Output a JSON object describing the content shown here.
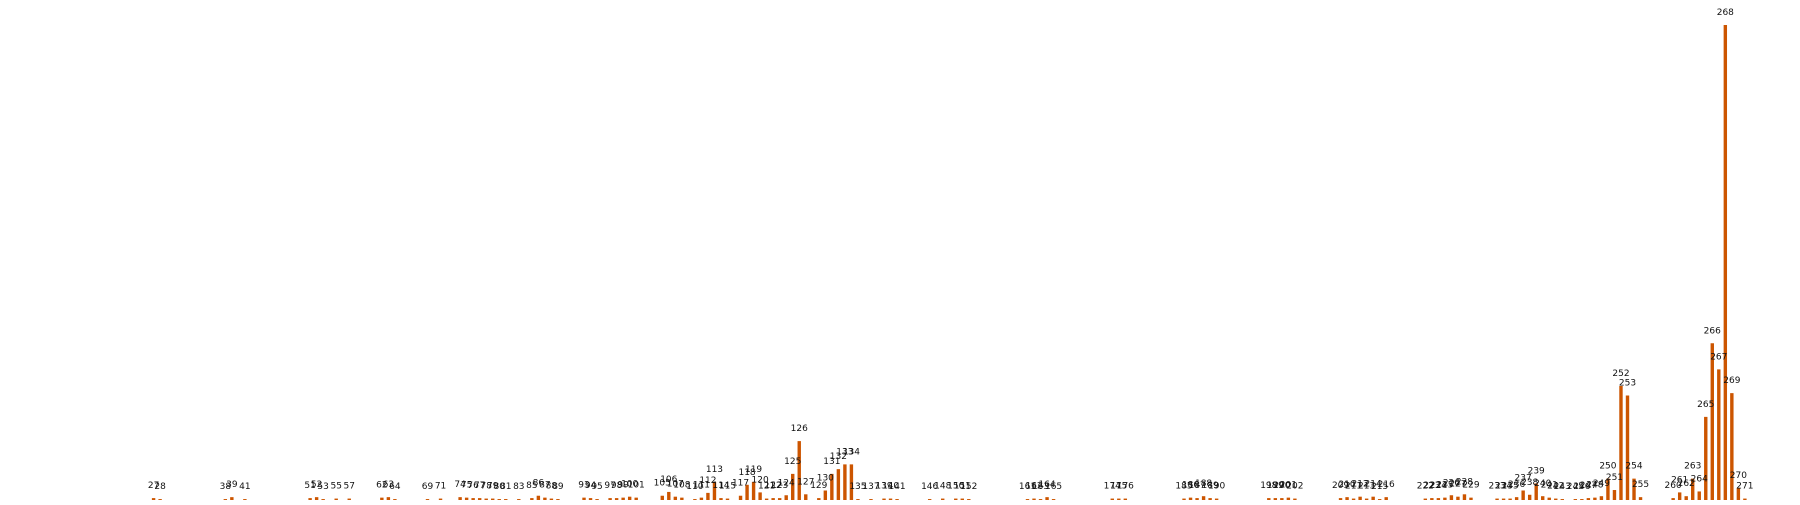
{
  "chart_data": {
    "type": "bar",
    "title": "",
    "xlabel": "",
    "ylabel": "",
    "color": "#cc5500",
    "x_range": [
      0,
      272
    ],
    "ylim": [
      0,
      1
    ],
    "axes_visible": false,
    "grid": false,
    "bar_labels_shown": "x_value_above_bar",
    "x": [
      27,
      28,
      38,
      39,
      41,
      51,
      52,
      53,
      55,
      57,
      62,
      63,
      64,
      69,
      71,
      74,
      75,
      76,
      77,
      78,
      79,
      80,
      81,
      83,
      85,
      86,
      87,
      88,
      89,
      93,
      94,
      95,
      97,
      98,
      99,
      100,
      101,
      105,
      106,
      107,
      108,
      110,
      111,
      112,
      113,
      114,
      115,
      117,
      118,
      119,
      120,
      121,
      122,
      123,
      124,
      125,
      126,
      127,
      129,
      130,
      131,
      132,
      133,
      134,
      135,
      137,
      139,
      140,
      141,
      146,
      148,
      150,
      151,
      152,
      161,
      162,
      163,
      164,
      165,
      174,
      175,
      176,
      185,
      186,
      187,
      188,
      189,
      190,
      198,
      199,
      200,
      201,
      202,
      209,
      210,
      211,
      212,
      213,
      214,
      215,
      216,
      222,
      223,
      224,
      225,
      226,
      227,
      228,
      229,
      233,
      234,
      235,
      236,
      237,
      238,
      239,
      240,
      241,
      242,
      243,
      245,
      246,
      247,
      248,
      249,
      250,
      251,
      252,
      253,
      254,
      255,
      260,
      261,
      262,
      263,
      264,
      265,
      266,
      267,
      268,
      269,
      270,
      271
    ],
    "values": [
      0.004,
      0.002,
      0.002,
      0.006,
      0.002,
      0.004,
      0.006,
      0.002,
      0.003,
      0.003,
      0.005,
      0.006,
      0.002,
      0.002,
      0.003,
      0.006,
      0.005,
      0.004,
      0.004,
      0.003,
      0.003,
      0.002,
      0.002,
      0.002,
      0.004,
      0.009,
      0.005,
      0.003,
      0.002,
      0.005,
      0.004,
      0.002,
      0.004,
      0.004,
      0.005,
      0.007,
      0.005,
      0.009,
      0.017,
      0.007,
      0.005,
      0.002,
      0.005,
      0.015,
      0.038,
      0.004,
      0.003,
      0.009,
      0.032,
      0.038,
      0.016,
      0.003,
      0.004,
      0.004,
      0.01,
      0.055,
      0.124,
      0.012,
      0.004,
      0.02,
      0.055,
      0.065,
      0.075,
      0.075,
      0.002,
      0.002,
      0.003,
      0.003,
      0.002,
      0.002,
      0.003,
      0.003,
      0.003,
      0.002,
      0.002,
      0.003,
      0.002,
      0.006,
      0.002,
      0.003,
      0.003,
      0.003,
      0.003,
      0.005,
      0.004,
      0.008,
      0.004,
      0.003,
      0.004,
      0.004,
      0.004,
      0.005,
      0.003,
      0.004,
      0.006,
      0.003,
      0.007,
      0.003,
      0.007,
      0.002,
      0.006,
      0.003,
      0.004,
      0.004,
      0.005,
      0.01,
      0.007,
      0.012,
      0.005,
      0.003,
      0.003,
      0.003,
      0.006,
      0.02,
      0.011,
      0.035,
      0.008,
      0.005,
      0.003,
      0.002,
      0.002,
      0.002,
      0.004,
      0.005,
      0.008,
      0.045,
      0.021,
      0.24,
      0.22,
      0.045,
      0.006,
      0.004,
      0.016,
      0.008,
      0.045,
      0.018,
      0.175,
      0.33,
      0.275,
      1.0,
      0.225,
      0.025,
      0.003
    ]
  }
}
